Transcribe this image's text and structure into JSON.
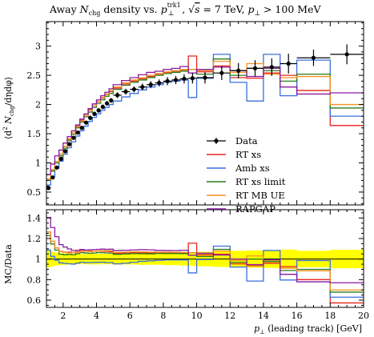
{
  "chart_data": [
    {
      "type": "line",
      "title": "Away N_chg density vs. p_⊥^trk1, √s = 7 TeV, p_⊥ > 100 MeV",
      "title_parts": {
        "prefix": "Away ",
        "nsym": "N",
        "nsub": "chg",
        "mid": " density vs. ",
        "psym": "p",
        "psub": "⊥",
        "psup": "trk1",
        "sep": ", ",
        "sqrt": "√",
        "s": "s",
        "energy": " = 7 TeV, ",
        "psym2": "p",
        "psub2": "⊥",
        "cut": " > 100 MeV"
      },
      "ylabel": "⟨d² N_chg/dηdφ⟩",
      "ylabel_parts": {
        "open": "⟨d",
        "sup2": "2",
        "n": " N",
        "chg": "chg",
        "rest": "/dηdφ⟩"
      },
      "xlim": [
        1,
        20
      ],
      "ylim": [
        0.28,
        3.42
      ],
      "yticks": [
        0.5,
        1,
        1.5,
        2,
        2.5,
        3
      ],
      "grid": false,
      "legend_position": "right-middle",
      "bin_edges": [
        1.0,
        1.25,
        1.5,
        1.75,
        2.0,
        2.25,
        2.5,
        2.75,
        3.0,
        3.25,
        3.5,
        3.75,
        4.0,
        4.25,
        4.5,
        4.75,
        5.0,
        5.5,
        6.0,
        6.5,
        7.0,
        7.5,
        8.0,
        8.5,
        9.0,
        9.5,
        10.0,
        11.0,
        12.0,
        13.0,
        14.0,
        15.0,
        16.0,
        18.0,
        20.0
      ],
      "data": {
        "name": "Data",
        "x": [
          1.125,
          1.375,
          1.625,
          1.875,
          2.125,
          2.375,
          2.625,
          2.875,
          3.125,
          3.375,
          3.625,
          3.875,
          4.125,
          4.375,
          4.625,
          4.875,
          5.25,
          5.75,
          6.25,
          6.75,
          7.25,
          7.75,
          8.25,
          8.75,
          9.25,
          9.75,
          10.5,
          11.5,
          12.5,
          13.5,
          14.5,
          15.5,
          17.0,
          19.0
        ],
        "y": [
          0.57,
          0.75,
          0.92,
          1.07,
          1.2,
          1.32,
          1.43,
          1.52,
          1.6,
          1.69,
          1.77,
          1.84,
          1.9,
          1.96,
          2.02,
          2.07,
          2.16,
          2.22,
          2.26,
          2.3,
          2.34,
          2.37,
          2.4,
          2.42,
          2.44,
          2.45,
          2.46,
          2.54,
          2.58,
          2.62,
          2.64,
          2.7,
          2.8,
          2.86
        ],
        "yerr": [
          0.03,
          0.03,
          0.03,
          0.03,
          0.03,
          0.03,
          0.03,
          0.03,
          0.03,
          0.03,
          0.04,
          0.04,
          0.04,
          0.04,
          0.04,
          0.04,
          0.05,
          0.05,
          0.05,
          0.06,
          0.06,
          0.06,
          0.07,
          0.07,
          0.08,
          0.09,
          0.1,
          0.12,
          0.13,
          0.14,
          0.15,
          0.17,
          0.14,
          0.17
        ]
      },
      "series": [
        {
          "name": "RT xs",
          "color": "#e6261f",
          "values": [
            0.72,
            0.88,
            1.02,
            1.15,
            1.28,
            1.41,
            1.52,
            1.63,
            1.73,
            1.82,
            1.91,
            1.98,
            2.05,
            2.11,
            2.17,
            2.22,
            2.28,
            2.35,
            2.4,
            2.44,
            2.48,
            2.52,
            2.55,
            2.57,
            2.59,
            2.83,
            2.56,
            2.66,
            2.46,
            2.45,
            2.54,
            2.5,
            2.24,
            1.64
          ]
        },
        {
          "name": "Amb xs",
          "color": "#3a6fe0",
          "values": [
            0.62,
            0.77,
            0.91,
            1.03,
            1.15,
            1.26,
            1.36,
            1.46,
            1.55,
            1.63,
            1.71,
            1.78,
            1.84,
            1.9,
            1.95,
            2.0,
            2.06,
            2.13,
            2.19,
            2.25,
            2.3,
            2.34,
            2.38,
            2.4,
            2.42,
            2.12,
            2.45,
            2.86,
            2.38,
            2.06,
            2.86,
            2.15,
            2.76,
            1.8
          ]
        },
        {
          "name": "RT xs limit",
          "color": "#2a7a1a",
          "values": [
            0.7,
            0.86,
            1.0,
            1.12,
            1.25,
            1.38,
            1.49,
            1.6,
            1.7,
            1.79,
            1.87,
            1.95,
            2.02,
            2.08,
            2.14,
            2.19,
            2.26,
            2.33,
            2.38,
            2.42,
            2.46,
            2.5,
            2.53,
            2.55,
            2.57,
            2.6,
            2.52,
            2.78,
            2.5,
            2.62,
            2.58,
            2.4,
            2.52,
            1.94
          ]
        },
        {
          "name": "RT MB UE",
          "color": "#f5921e",
          "values": [
            0.72,
            0.88,
            1.02,
            1.15,
            1.28,
            1.4,
            1.52,
            1.62,
            1.72,
            1.82,
            1.9,
            1.98,
            2.05,
            2.12,
            2.18,
            2.24,
            2.3,
            2.37,
            2.42,
            2.46,
            2.5,
            2.53,
            2.56,
            2.58,
            2.6,
            2.6,
            2.58,
            2.74,
            2.55,
            2.7,
            2.52,
            2.46,
            2.48,
            2.0
          ]
        },
        {
          "name": "RAPGAP",
          "color": "#8a1aa0",
          "values": [
            0.8,
            0.98,
            1.12,
            1.22,
            1.34,
            1.45,
            1.55,
            1.65,
            1.75,
            1.84,
            1.93,
            2.01,
            2.08,
            2.15,
            2.21,
            2.27,
            2.34,
            2.41,
            2.46,
            2.51,
            2.55,
            2.57,
            2.6,
            2.62,
            2.65,
            2.54,
            2.6,
            2.64,
            2.58,
            2.48,
            2.62,
            2.3,
            2.18,
            2.2
          ]
        }
      ]
    },
    {
      "type": "line",
      "ylabel": "MC/Data",
      "xlabel": "p_⊥ (leading track) [GeV]",
      "xlabel_parts": {
        "psym": "p",
        "psub": "⊥",
        "rest": " (leading track) [GeV]"
      },
      "xlim": [
        1,
        20
      ],
      "ylim": [
        0.53,
        1.48
      ],
      "yticks": [
        0.6,
        0.8,
        1,
        1.2,
        1.4
      ],
      "xticks": [
        2,
        4,
        6,
        8,
        10,
        12,
        14,
        16,
        18,
        20
      ],
      "band_color": "#ffff00",
      "reference_line": 1
    }
  ]
}
